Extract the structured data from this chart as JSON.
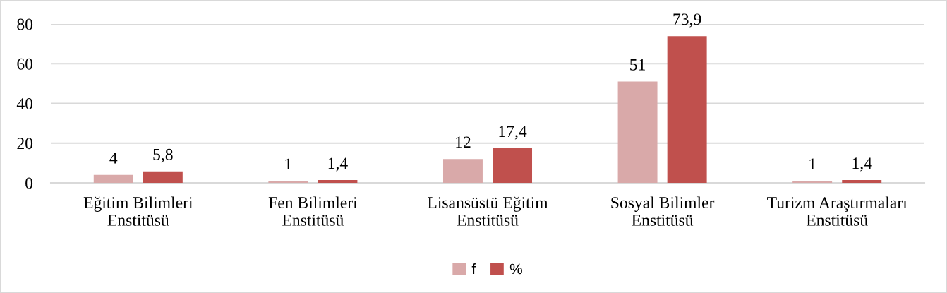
{
  "chart_data": {
    "type": "bar",
    "categories": [
      "Eğitim Bilimleri\nEnstitüsü",
      "Fen Bilimleri\nEnstitüsü",
      "Lisansüstü Eğitim\nEnstitüsü",
      "Sosyal Bilimler\nEnstitüsü",
      "Turizm Araştırmaları\nEnstitüsü"
    ],
    "series": [
      {
        "name": "f",
        "color": "#d9a9a9",
        "values": [
          4,
          1,
          12,
          51,
          1
        ],
        "value_labels": [
          "4",
          "1",
          "12",
          "51",
          "1"
        ]
      },
      {
        "name": "%",
        "color": "#c0504d",
        "values": [
          5.8,
          1.4,
          17.4,
          73.9,
          1.4
        ],
        "value_labels": [
          "5,8",
          "1,4",
          "17,4",
          "73,9",
          "1,4"
        ]
      }
    ],
    "ylim": [
      0,
      80
    ],
    "yticks": [
      0,
      20,
      40,
      60,
      80
    ],
    "grid": "y",
    "legend": "bottom"
  }
}
